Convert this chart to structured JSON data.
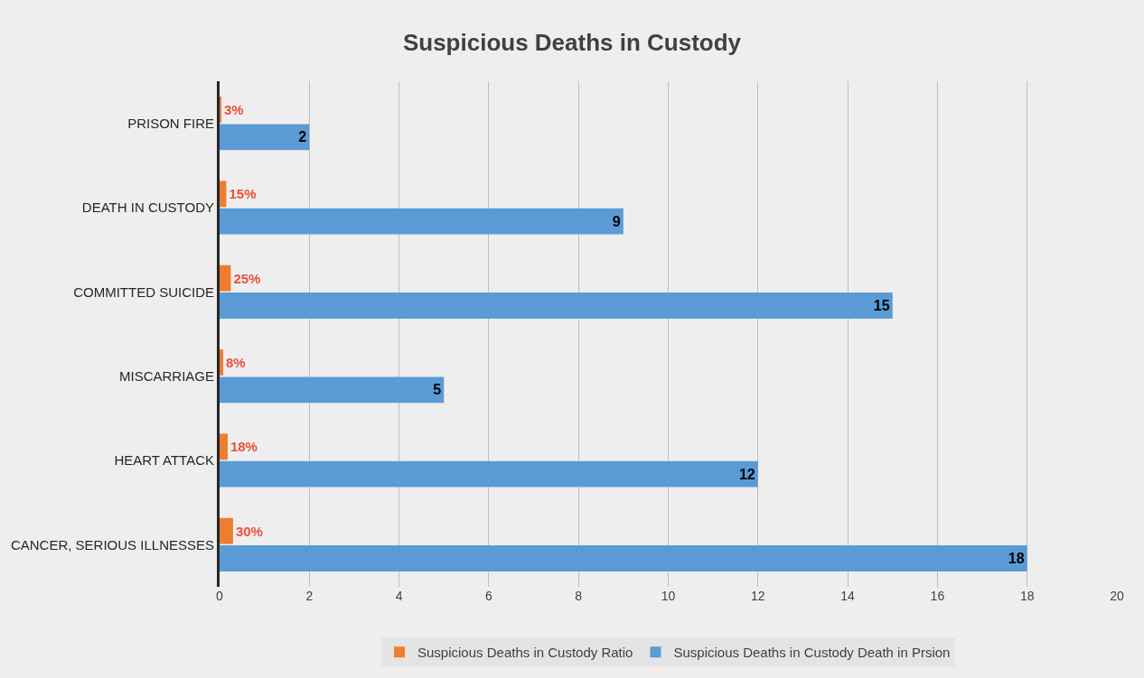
{
  "chart_data": {
    "type": "bar",
    "orientation": "horizontal",
    "title": "Suspicious Deaths in Custody",
    "categories": [
      "PRISON FIRE",
      "DEATH IN CUSTODY",
      "COMMITTED SUICIDE",
      "MISCARRIAGE",
      "HEART ATTACK",
      "CANCER, SERIOUS ILLNESSES"
    ],
    "series": [
      {
        "name": "Suspicious Deaths in Custody Ratio",
        "color": "#ed7d31",
        "values": [
          0.03,
          0.15,
          0.25,
          0.08,
          0.18,
          0.3
        ],
        "value_labels": [
          "3%",
          "15%",
          "25%",
          "8%",
          "18%",
          "30%"
        ]
      },
      {
        "name": "Suspicious Deaths in Custody Death in Prsion",
        "color": "#5b9bd5",
        "values": [
          2,
          9,
          15,
          5,
          12,
          18
        ],
        "value_labels": [
          "2",
          "9",
          "15",
          "5",
          "12",
          "18"
        ]
      }
    ],
    "xlim": [
      0,
      20
    ],
    "xticks": [
      0,
      2,
      4,
      6,
      8,
      10,
      12,
      14,
      16,
      18,
      20
    ],
    "grid": "x",
    "legend": "bottom"
  }
}
